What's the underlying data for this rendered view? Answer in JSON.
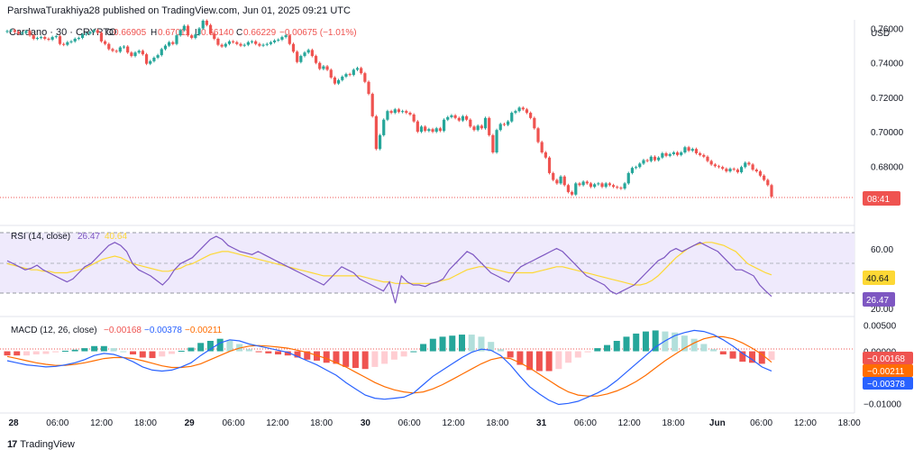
{
  "header": {
    "published": "ParshwaTurakhiya28 published on TradingView.com, Jun 01, 2025 09:21 UTC"
  },
  "legend": {
    "symbol": "Cardano · 30 · CRYPTO",
    "open_label": "O",
    "open": "0.66905",
    "high_label": "H",
    "high": "0.67011",
    "low_label": "L",
    "low": "0.66140",
    "close_label": "C",
    "close": "0.66229",
    "change": "−0.00675 (−1.01%)"
  },
  "price_axis": {
    "currency": "USD",
    "ticks": [
      "0.76000",
      "0.74000",
      "0.72000",
      "0.70000",
      "0.68000"
    ],
    "countdown": "08:41"
  },
  "rsi": {
    "title": "RSI (14, close)",
    "value": "26.47",
    "ma_value": "40.64",
    "ticks": [
      "60.00",
      "20.00"
    ]
  },
  "macd": {
    "title": "MACD (12, 26, close)",
    "hist_value": "−0.00168",
    "macd_value": "−0.00378",
    "signal_value": "−0.00211",
    "ticks": [
      "0.00500",
      "0.00000",
      "−0.00500",
      "−0.01000"
    ]
  },
  "time_axis": [
    "28",
    "06:00",
    "12:00",
    "18:00",
    "29",
    "06:00",
    "12:00",
    "18:00",
    "30",
    "06:00",
    "12:00",
    "18:00",
    "31",
    "06:00",
    "12:00",
    "18:00",
    "Jun",
    "06:00",
    "12:00",
    "18:00"
  ],
  "footer": {
    "brand": "TradingView"
  },
  "colors": {
    "up": "#26a69a",
    "down": "#ef5350",
    "rsi": "#7e57c2",
    "rsi_ma": "#fdd835",
    "macd": "#2962ff",
    "signal": "#ff6d00",
    "rsi_band": "#efeafc",
    "hist_up_strong": "#26a69a",
    "hist_up_weak": "#b2dfdb",
    "hist_down_strong": "#ef5350",
    "hist_down_weak": "#ffcdd2"
  },
  "chart_data": [
    {
      "type": "candlestick",
      "title": "Cardano · 30 · CRYPTO",
      "ylabel": "USD",
      "ylim": [
        0.655,
        0.765
      ],
      "x_start": "May 28 00:00",
      "x_interval": "30m",
      "close": [
        0.7585,
        0.759,
        0.758,
        0.757,
        0.7575,
        0.7585,
        0.756,
        0.754,
        0.7545,
        0.755,
        0.754,
        0.7535,
        0.755,
        0.7555,
        0.751,
        0.7505,
        0.752,
        0.7525,
        0.754,
        0.7545,
        0.7565,
        0.757,
        0.758,
        0.759,
        0.7575,
        0.7525,
        0.751,
        0.748,
        0.747,
        0.7465,
        0.749,
        0.7495,
        0.746,
        0.744,
        0.746,
        0.747,
        0.745,
        0.7395,
        0.741,
        0.743,
        0.7445,
        0.748,
        0.75,
        0.752,
        0.751,
        0.756,
        0.759,
        0.7615,
        0.756,
        0.7545,
        0.7565,
        0.76,
        0.7645,
        0.762,
        0.757,
        0.754,
        0.7505,
        0.7495,
        0.751,
        0.7525,
        0.752,
        0.751,
        0.75,
        0.7505,
        0.752,
        0.7525,
        0.751,
        0.75,
        0.7505,
        0.751,
        0.752,
        0.753,
        0.7535,
        0.755,
        0.756,
        0.751,
        0.7465,
        0.7405,
        0.744,
        0.746,
        0.7475,
        0.744,
        0.74,
        0.7365,
        0.738,
        0.736,
        0.7315,
        0.728,
        0.73,
        0.732,
        0.7335,
        0.733,
        0.736,
        0.737,
        0.734,
        0.729,
        0.722,
        0.709,
        0.69,
        0.698,
        0.707,
        0.712,
        0.711,
        0.713,
        0.7115,
        0.712,
        0.711,
        0.71,
        0.706,
        0.7,
        0.703,
        0.7005,
        0.7015,
        0.7,
        0.702,
        0.7005,
        0.707,
        0.7085,
        0.7095,
        0.708,
        0.7065,
        0.709,
        0.707,
        0.703,
        0.701,
        0.7035,
        0.702,
        0.708,
        0.698,
        0.688,
        0.701,
        0.7045,
        0.704,
        0.706,
        0.711,
        0.712,
        0.714,
        0.713,
        0.711,
        0.708,
        0.702,
        0.694,
        0.688,
        0.685,
        0.676,
        0.672,
        0.67,
        0.674,
        0.669,
        0.665,
        0.6635,
        0.67,
        0.669,
        0.671,
        0.67,
        0.668,
        0.6695,
        0.67,
        0.668,
        0.67,
        0.669,
        0.668,
        0.6675,
        0.667,
        0.67,
        0.676,
        0.679,
        0.6795,
        0.6815,
        0.6835,
        0.683,
        0.6855,
        0.6835,
        0.685,
        0.6875,
        0.686,
        0.687,
        0.688,
        0.6865,
        0.688,
        0.691,
        0.689,
        0.69,
        0.6875,
        0.6865,
        0.6855,
        0.683,
        0.681,
        0.68,
        0.6795,
        0.6785,
        0.677,
        0.6785,
        0.678,
        0.6765,
        0.6795,
        0.682,
        0.681,
        0.678,
        0.677,
        0.6745,
        0.672,
        0.669,
        0.6623
      ]
    },
    {
      "type": "line",
      "title": "RSI (14, close)",
      "ylim": [
        15,
        72
      ],
      "series": [
        {
          "name": "RSI",
          "values": [
            50,
            48,
            46,
            44,
            45,
            47,
            44,
            42,
            40,
            38,
            36,
            38,
            42,
            46,
            48,
            52,
            56,
            60,
            62,
            60,
            56,
            48,
            44,
            42,
            40,
            37,
            34,
            38,
            44,
            48,
            50,
            52,
            56,
            60,
            64,
            66,
            64,
            60,
            58,
            56,
            55,
            54,
            56,
            54,
            52,
            50,
            48,
            46,
            44,
            42,
            40,
            38,
            36,
            34,
            38,
            42,
            46,
            44,
            42,
            38,
            36,
            34,
            32,
            30,
            36,
            22,
            40,
            36,
            34,
            34,
            33,
            35,
            36,
            38,
            44,
            48,
            52,
            56,
            54,
            50,
            46,
            42,
            40,
            38,
            36,
            42,
            46,
            48,
            50,
            52,
            54,
            56,
            58,
            56,
            52,
            48,
            44,
            40,
            38,
            36,
            34,
            30,
            28,
            30,
            32,
            34,
            38,
            42,
            46,
            50,
            52,
            56,
            58,
            56,
            58,
            60,
            62,
            60,
            58,
            56,
            52,
            48,
            44,
            44,
            42,
            40,
            34,
            30,
            26.47
          ]
        },
        {
          "name": "RSI-based MA",
          "values": [
            48,
            47,
            46,
            45,
            44,
            44,
            43,
            43,
            42,
            42,
            42,
            43,
            44,
            45,
            47,
            49,
            51,
            52,
            53,
            52,
            50,
            48,
            47,
            46,
            45,
            44,
            43,
            43,
            44,
            45,
            47,
            48,
            50,
            52,
            54,
            55,
            56,
            56,
            55,
            54,
            53,
            52,
            51,
            50,
            49,
            48,
            47,
            46,
            45,
            44,
            43,
            42,
            41,
            40,
            40,
            40,
            40,
            40,
            40,
            40,
            39,
            38,
            37,
            36,
            36,
            35,
            35,
            35,
            35,
            35,
            35,
            35,
            36,
            37,
            38,
            40,
            42,
            44,
            45,
            46,
            46,
            45,
            44,
            43,
            42,
            42,
            42,
            42,
            42,
            43,
            44,
            45,
            46,
            46,
            45,
            44,
            43,
            42,
            41,
            40,
            39,
            38,
            37,
            36,
            35,
            34,
            34,
            35,
            37,
            40,
            44,
            48,
            52,
            55,
            58,
            60,
            61,
            62,
            62,
            61,
            60,
            58,
            56,
            52,
            48,
            46,
            44,
            42,
            40.64
          ]
        }
      ]
    },
    {
      "type": "line",
      "title": "MACD (12, 26, close)",
      "ylim": [
        -0.0115,
        0.0065
      ],
      "series": [
        {
          "name": "MACD",
          "values": [
            -0.0018,
            -0.0022,
            -0.0026,
            -0.0028,
            -0.003,
            -0.0029,
            -0.0026,
            -0.0022,
            -0.0016,
            -0.0008,
            -0.0004,
            -0.0006,
            -0.0012,
            -0.002,
            -0.003,
            -0.0036,
            -0.0038,
            -0.0036,
            -0.003,
            -0.0022,
            -0.0008,
            0.0004,
            0.0016,
            0.0022,
            0.002,
            0.0014,
            0.001,
            0.0006,
            0.0002,
            -0.0002,
            -0.001,
            -0.0018,
            -0.0026,
            -0.0036,
            -0.0046,
            -0.006,
            -0.0072,
            -0.0084,
            -0.009,
            -0.0092,
            -0.009,
            -0.0088,
            -0.008,
            -0.0064,
            -0.0048,
            -0.0036,
            -0.0024,
            -0.0012,
            -0.0002,
            0.0004,
            0.0002,
            -0.0008,
            -0.0026,
            -0.0048,
            -0.0068,
            -0.0082,
            -0.0094,
            -0.0102,
            -0.01,
            -0.0096,
            -0.0088,
            -0.008,
            -0.007,
            -0.0056,
            -0.004,
            -0.0024,
            -0.0008,
            0.0008,
            0.002,
            0.003,
            0.0036,
            0.004,
            0.0038,
            0.0032,
            0.0022,
            0.001,
            -0.0004,
            -0.0016,
            -0.003,
            -0.00378
          ]
        },
        {
          "name": "Signal",
          "values": [
            -0.001,
            -0.0014,
            -0.0018,
            -0.0022,
            -0.0025,
            -0.0027,
            -0.0027,
            -0.0025,
            -0.0022,
            -0.0018,
            -0.0014,
            -0.0012,
            -0.0012,
            -0.0014,
            -0.0018,
            -0.0023,
            -0.0028,
            -0.0031,
            -0.0031,
            -0.0029,
            -0.0024,
            -0.0016,
            -0.0008,
            0.0,
            0.0006,
            0.001,
            0.0011,
            0.001,
            0.0008,
            0.0006,
            0.0002,
            -0.0002,
            -0.0008,
            -0.0014,
            -0.0022,
            -0.003,
            -0.004,
            -0.005,
            -0.006,
            -0.0068,
            -0.0074,
            -0.0078,
            -0.008,
            -0.0078,
            -0.0072,
            -0.0064,
            -0.0054,
            -0.0044,
            -0.0034,
            -0.0024,
            -0.0016,
            -0.0012,
            -0.0014,
            -0.0022,
            -0.0032,
            -0.0044,
            -0.0056,
            -0.0068,
            -0.0078,
            -0.0084,
            -0.0086,
            -0.0086,
            -0.0082,
            -0.0076,
            -0.0068,
            -0.0058,
            -0.0046,
            -0.0032,
            -0.0018,
            -0.0006,
            0.0006,
            0.0016,
            0.0024,
            0.0028,
            0.0028,
            0.0024,
            0.0016,
            0.0006,
            -0.0006,
            -0.00211
          ]
        }
      ]
    }
  ]
}
